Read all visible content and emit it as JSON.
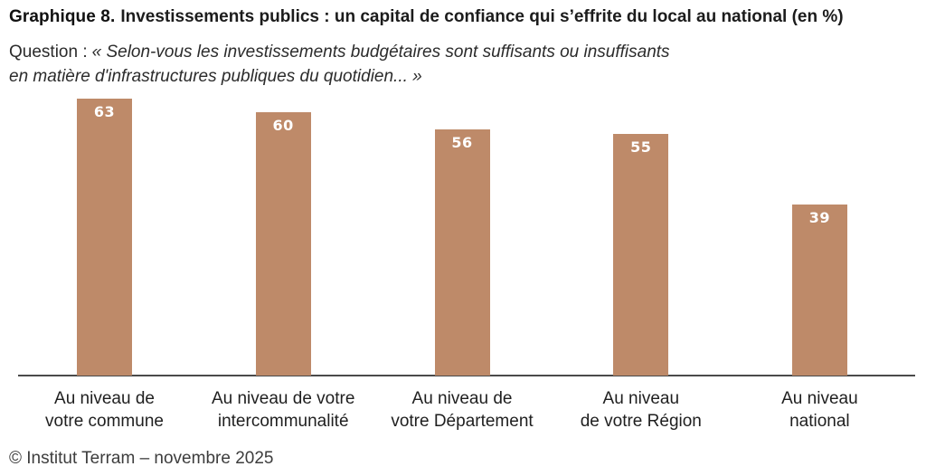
{
  "header": {
    "title_prefix": "Graphique 8.",
    "title_text": "Investissements publics : un capital de confiance qui s’effrite du local au national (en %)",
    "question_label": "Question :",
    "question_line1": "« Selon-vous les investissements budgétaires sont suffisants ou insuffisants",
    "question_line2": "en matière d'infrastructures publiques du quotidien... »"
  },
  "chart_data": {
    "type": "bar",
    "title": "Graphique 8. Investissements publics : un capital de confiance qui s’effrite du local au national (en %)",
    "subtitle": "Question : « Selon-vous les investissements budgétaires sont suffisants ou insuffisants en matière d'infrastructures publiques du quotidien... »",
    "categories": [
      "Au niveau de\nvotre commune",
      "Au niveau de votre\nintercommunalité",
      "Au niveau de\nvotre Département",
      "Au niveau\nde votre Région",
      "Au niveau\nnational"
    ],
    "values": [
      63,
      60,
      56,
      55,
      39
    ],
    "unit": "%",
    "xlabel": "",
    "ylabel": "",
    "ylim": [
      0,
      65
    ],
    "grid": false,
    "legend": null,
    "value_labels_inside_bars": true,
    "bar_color": "#BE8A69",
    "value_label_color": "#FFFFFF",
    "axis_color": "#4A4A4A"
  },
  "footer": {
    "source": "© Institut Terram – novembre 2025"
  }
}
